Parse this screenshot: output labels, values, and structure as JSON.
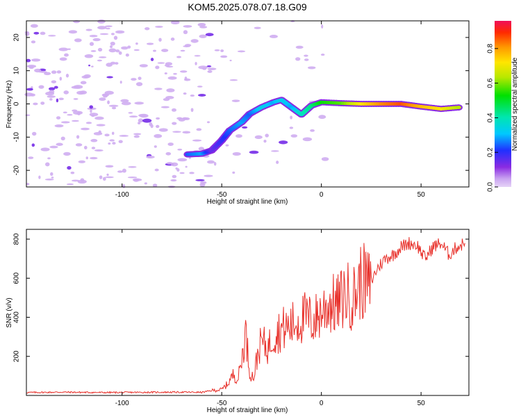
{
  "title": "KOM5.2025.078.07.18.G09",
  "chart_data": [
    {
      "type": "heatmap",
      "xlabel": "Height of straight line (km)",
      "ylabel": "Frequency (Hz)",
      "xlim": [
        -148,
        74
      ],
      "ylim": [
        -25,
        25
      ],
      "xticks": [
        -100,
        -50,
        0,
        50
      ],
      "yticks": [
        -20,
        -10,
        0,
        10,
        20
      ],
      "colorbar": {
        "label": "Normalized spectral amplitude",
        "range": [
          0,
          0.96
        ],
        "ticks": [
          0.0,
          0.2,
          0.4,
          0.6,
          0.8
        ]
      },
      "signal_track": [
        {
          "x": -67,
          "y": -15.2,
          "amp": 0.25
        },
        {
          "x": -60,
          "y": -15.0,
          "amp": 0.3
        },
        {
          "x": -55,
          "y": -14.0,
          "amp": 0.15
        },
        {
          "x": -50,
          "y": -11.0,
          "amp": 0.2
        },
        {
          "x": -46,
          "y": -8.0,
          "amp": 0.25
        },
        {
          "x": -40,
          "y": -5.5,
          "amp": 0.3
        },
        {
          "x": -36,
          "y": -3.0,
          "amp": 0.25
        },
        {
          "x": -30,
          "y": -1.0,
          "amp": 0.35
        },
        {
          "x": -24,
          "y": 0.5,
          "amp": 0.3
        },
        {
          "x": -20,
          "y": 1.2,
          "amp": 0.35
        },
        {
          "x": -15,
          "y": -1.0,
          "amp": 0.3
        },
        {
          "x": -10,
          "y": -3.2,
          "amp": 0.4
        },
        {
          "x": -5,
          "y": -0.5,
          "amp": 0.45
        },
        {
          "x": 0,
          "y": 0.5,
          "amp": 0.55
        },
        {
          "x": 10,
          "y": 0.2,
          "amp": 0.6
        },
        {
          "x": 20,
          "y": 0.0,
          "amp": 0.75
        },
        {
          "x": 30,
          "y": 0.0,
          "amp": 0.85
        },
        {
          "x": 40,
          "y": 0.0,
          "amp": 0.9
        },
        {
          "x": 50,
          "y": -0.8,
          "amp": 0.8
        },
        {
          "x": 60,
          "y": -1.5,
          "amp": 0.75
        },
        {
          "x": 70,
          "y": -1.0,
          "amp": 0.65
        }
      ]
    },
    {
      "type": "line",
      "xlabel": "Height of straight line (km)",
      "ylabel": "SNR (v/v)",
      "xlim": [
        -148,
        74
      ],
      "ylim": [
        0,
        850
      ],
      "xticks": [
        -100,
        -50,
        0,
        50
      ],
      "yticks": [
        200,
        400,
        600,
        800
      ],
      "color": "#e8302a",
      "series": [
        {
          "x": [
            -148,
            -130,
            -110,
            -90,
            -70,
            -60,
            -55,
            -50,
            -47,
            -44,
            -42,
            -40,
            -38,
            -36,
            -34,
            -32,
            -30,
            -27,
            -24,
            -20,
            -16,
            -12,
            -8,
            -4,
            0,
            4,
            8,
            12,
            16,
            20,
            24,
            28,
            32,
            36,
            40,
            44,
            48,
            52,
            56,
            60,
            64,
            68,
            72
          ],
          "y": [
            15,
            17,
            15,
            16,
            17,
            16,
            25,
            30,
            60,
            110,
            80,
            180,
            330,
            120,
            90,
            210,
            280,
            240,
            310,
            340,
            350,
            380,
            400,
            380,
            430,
            470,
            460,
            520,
            500,
            590,
            560,
            650,
            700,
            720,
            760,
            780,
            770,
            700,
            760,
            780,
            720,
            760,
            780
          ]
        }
      ]
    }
  ]
}
